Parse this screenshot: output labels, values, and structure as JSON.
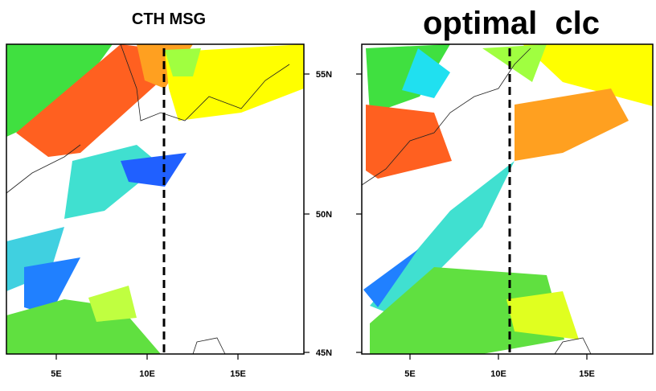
{
  "panels": [
    {
      "title": "CTH MSG",
      "x_labels": [
        "5E",
        "10E",
        "15E"
      ]
    },
    {
      "title": "optimal  clc",
      "x_labels": [
        "5E",
        "10E",
        "15E"
      ]
    }
  ],
  "y_labels": [
    "55N",
    "50N",
    "45N"
  ]
}
